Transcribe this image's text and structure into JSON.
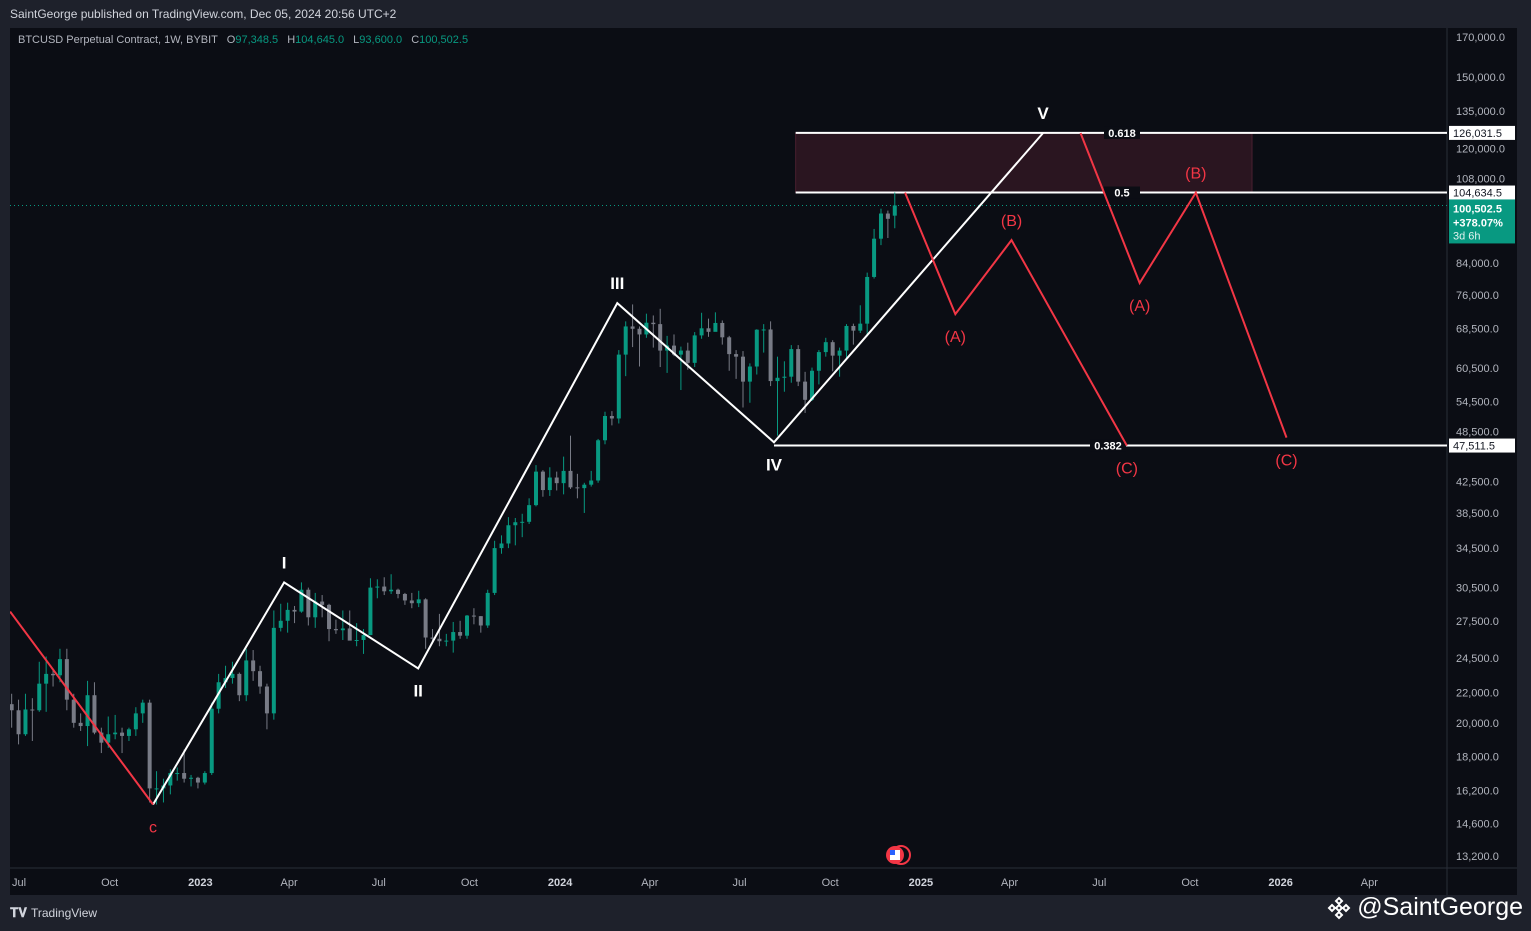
{
  "header": {
    "published": "SaintGeorge published on TradingView.com, Dec 05, 2024 20:56 UTC+2"
  },
  "legend": {
    "symbol": "BTCUSD Perpetual Contract, 1W, BYBIT",
    "o_label": "O",
    "o": "97,348.5",
    "h_label": "H",
    "h": "104,645.0",
    "l_label": "L",
    "l": "93,600.0",
    "c_label": "C",
    "c": "100,502.5"
  },
  "footer": {
    "logo": "TradingView",
    "author": "@SaintGeorge"
  },
  "colors": {
    "up": "#089981",
    "down": "#787b86",
    "wave": "#ffffff",
    "correction": "#f23645",
    "zone": "#2a1520",
    "background": "#0b0d14"
  },
  "chart_data": {
    "type": "candlestick",
    "y_scale": "log",
    "ylim": [
      13200,
      170000
    ],
    "xlim": [
      "2022-06-21",
      "2026-06-20"
    ],
    "grid": false,
    "y_ticks": [
      170000,
      150000,
      135000,
      120000,
      108000,
      84000,
      76000,
      68500,
      60500,
      54500,
      48500,
      42500,
      38500,
      34500,
      30500,
      27500,
      24500,
      22000,
      20000,
      18000,
      16200,
      14600,
      13200
    ],
    "y_tick_labels": [
      "170,000.0",
      "150,000.0",
      "135,000.0",
      "120,000.0",
      "108,000.0",
      "84,000.0",
      "76,000.0",
      "68,500.0",
      "60,500.0",
      "54,500.0",
      "48,500.0",
      "42,500.0",
      "38,500.0",
      "34,500.0",
      "30,500.0",
      "27,500.0",
      "24,500.0",
      "22,000.0",
      "20,000.0",
      "18,000.0",
      "16,200.0",
      "14,600.0",
      "13,200.0"
    ],
    "x_ticks": [
      {
        "date": "2022-07-01",
        "label": "Jul"
      },
      {
        "date": "2022-10-01",
        "label": "Oct"
      },
      {
        "date": "2023-01-01",
        "label": "2023"
      },
      {
        "date": "2023-04-01",
        "label": "Apr"
      },
      {
        "date": "2023-07-01",
        "label": "Jul"
      },
      {
        "date": "2023-10-01",
        "label": "Oct"
      },
      {
        "date": "2024-01-01",
        "label": "2024"
      },
      {
        "date": "2024-04-01",
        "label": "Apr"
      },
      {
        "date": "2024-07-01",
        "label": "Jul"
      },
      {
        "date": "2024-10-01",
        "label": "Oct"
      },
      {
        "date": "2025-01-01",
        "label": "2025"
      },
      {
        "date": "2025-04-01",
        "label": "Apr"
      },
      {
        "date": "2025-07-01",
        "label": "Jul"
      },
      {
        "date": "2025-10-01",
        "label": "Oct"
      },
      {
        "date": "2026-01-01",
        "label": "2026"
      },
      {
        "date": "2026-04-01",
        "label": "Apr"
      }
    ],
    "price_labels": [
      {
        "price": 126031.5,
        "label": "126,031.5"
      },
      {
        "price": 104634.5,
        "label": "104,634.5"
      },
      {
        "price": 47511.5,
        "label": "47,511.5"
      }
    ],
    "last_price": {
      "price": 100502.5,
      "label": "100,502.5",
      "change": "+378.07%",
      "countdown": "3d 6h"
    },
    "fib_levels": [
      {
        "level": "0.618",
        "price": 126031.5,
        "from": "2024-08-27"
      },
      {
        "level": "0.5",
        "price": 104634.5,
        "from": "2024-08-27"
      },
      {
        "level": "0.382",
        "price": 47511.5,
        "from": "2024-08-05"
      }
    ],
    "zone": {
      "from": "2024-08-27",
      "to": "2025-12-03",
      "low": 104634.5,
      "high": 126031.5
    },
    "waves": [
      {
        "name": "impulse",
        "color": "#ffffff",
        "points": [
          {
            "date": "2022-11-14",
            "price": 15500,
            "label": "",
            "pos": "below"
          },
          {
            "date": "2023-03-27",
            "price": 31000,
            "label": "I",
            "pos": "above"
          },
          {
            "date": "2023-08-10",
            "price": 23700,
            "label": "II",
            "pos": "below"
          },
          {
            "date": "2024-02-28",
            "price": 74100,
            "label": "III",
            "pos": "above"
          },
          {
            "date": "2024-08-05",
            "price": 48000,
            "label": "IV",
            "pos": "below"
          },
          {
            "date": "2025-05-05",
            "price": 126000,
            "label": "V",
            "pos": "above"
          }
        ]
      },
      {
        "name": "prior",
        "color": "#f23645",
        "points": [
          {
            "date": "2022-06-22",
            "price": 28300,
            "label": "",
            "pos": "above"
          },
          {
            "date": "2022-11-14",
            "price": 15500,
            "label": "c",
            "pos": "below"
          }
        ]
      },
      {
        "name": "correction-1",
        "color": "#f23645",
        "points": [
          {
            "date": "2024-12-16",
            "price": 104600,
            "label": "",
            "pos": "above"
          },
          {
            "date": "2025-02-05",
            "price": 71600,
            "label": "(A)",
            "pos": "below"
          },
          {
            "date": "2025-04-03",
            "price": 90200,
            "label": "(B)",
            "pos": "above"
          },
          {
            "date": "2025-07-29",
            "price": 47500,
            "label": "(C)",
            "pos": "below"
          }
        ]
      },
      {
        "name": "correction-2",
        "color": "#f23645",
        "points": [
          {
            "date": "2025-06-12",
            "price": 126000,
            "label": "",
            "pos": "above"
          },
          {
            "date": "2025-08-11",
            "price": 78900,
            "label": "(A)",
            "pos": "below"
          },
          {
            "date": "2025-10-07",
            "price": 104600,
            "label": "(B)",
            "pos": "above"
          },
          {
            "date": "2026-01-07",
            "price": 48700,
            "label": "(C)",
            "pos": "below"
          }
        ]
      }
    ],
    "candles": [
      [
        "2022-06-20",
        21200,
        21900,
        19700,
        20800
      ],
      [
        "2022-06-27",
        20800,
        21500,
        18700,
        19300
      ],
      [
        "2022-07-04",
        19300,
        21900,
        19200,
        20850
      ],
      [
        "2022-07-11",
        20850,
        21600,
        18900,
        20800
      ],
      [
        "2022-07-18",
        20800,
        24200,
        20700,
        22600
      ],
      [
        "2022-07-25",
        22600,
        24600,
        20700,
        23300
      ],
      [
        "2022-08-01",
        23300,
        23600,
        22400,
        23200
      ],
      [
        "2022-08-08",
        23200,
        25200,
        22700,
        24400
      ],
      [
        "2022-08-15",
        24400,
        25200,
        20800,
        21500
      ],
      [
        "2022-08-22",
        21500,
        21900,
        19700,
        20000
      ],
      [
        "2022-08-29",
        20000,
        20600,
        19500,
        19800
      ],
      [
        "2022-09-05",
        19800,
        22800,
        18600,
        21800
      ],
      [
        "2022-09-12",
        21800,
        22700,
        19300,
        19400
      ],
      [
        "2022-09-19",
        19400,
        19700,
        18200,
        18800
      ],
      [
        "2022-09-26",
        18800,
        20400,
        18500,
        19300
      ],
      [
        "2022-10-03",
        19300,
        20500,
        19000,
        19400
      ],
      [
        "2022-10-10",
        19400,
        19700,
        18200,
        19200
      ],
      [
        "2022-10-17",
        19200,
        19700,
        18900,
        19600
      ],
      [
        "2022-10-24",
        19600,
        21000,
        19200,
        20600
      ],
      [
        "2022-10-31",
        20600,
        21500,
        20000,
        21300
      ],
      [
        "2022-11-07",
        21300,
        21500,
        15600,
        16300
      ],
      [
        "2022-11-14",
        16300,
        17200,
        15500,
        16300
      ],
      [
        "2022-11-21",
        16300,
        16800,
        15600,
        16450
      ],
      [
        "2022-11-28",
        16450,
        17300,
        16000,
        17100
      ],
      [
        "2022-12-05",
        17100,
        17400,
        16700,
        17100
      ],
      [
        "2022-12-12",
        17100,
        18400,
        16600,
        16800
      ],
      [
        "2022-12-19",
        16800,
        17000,
        16400,
        16850
      ],
      [
        "2022-12-26",
        16850,
        16900,
        16300,
        16600
      ],
      [
        "2023-01-02",
        16600,
        17200,
        16500,
        17100
      ],
      [
        "2023-01-09",
        17100,
        21300,
        17000,
        20900
      ],
      [
        "2023-01-16",
        20900,
        23300,
        20600,
        22700
      ],
      [
        "2023-01-23",
        22700,
        23900,
        22300,
        23000
      ],
      [
        "2023-01-30",
        23000,
        24200,
        22600,
        23300
      ],
      [
        "2023-02-06",
        23300,
        23400,
        21400,
        21800
      ],
      [
        "2023-02-13",
        21800,
        25200,
        21400,
        24300
      ],
      [
        "2023-02-20",
        24300,
        25100,
        22800,
        23500
      ],
      [
        "2023-02-27",
        23500,
        23900,
        21900,
        22400
      ],
      [
        "2023-03-06",
        22400,
        22600,
        19600,
        20600
      ],
      [
        "2023-03-13",
        20600,
        28400,
        20200,
        26900
      ],
      [
        "2023-03-20",
        26900,
        29000,
        26600,
        27500
      ],
      [
        "2023-03-27",
        27500,
        29100,
        26500,
        28450
      ],
      [
        "2023-04-03",
        28450,
        28800,
        27300,
        28300
      ],
      [
        "2023-04-10",
        28300,
        31000,
        28200,
        30300
      ],
      [
        "2023-04-17",
        30300,
        30500,
        27100,
        27800
      ],
      [
        "2023-04-24",
        27800,
        30000,
        26900,
        29200
      ],
      [
        "2023-05-01",
        29200,
        29800,
        27800,
        28900
      ],
      [
        "2023-05-08",
        28900,
        29000,
        25800,
        26800
      ],
      [
        "2023-05-15",
        26800,
        27600,
        26400,
        26700
      ],
      [
        "2023-05-22",
        26700,
        28400,
        25900,
        26850
      ],
      [
        "2023-05-29",
        26850,
        28400,
        26600,
        25850
      ],
      [
        "2023-06-05",
        25850,
        27300,
        25400,
        25900
      ],
      [
        "2023-06-12",
        25900,
        26800,
        24800,
        26300
      ],
      [
        "2023-06-19",
        26300,
        31400,
        26300,
        30500
      ],
      [
        "2023-06-26",
        30500,
        31300,
        29500,
        30600
      ],
      [
        "2023-07-03",
        30600,
        31500,
        29800,
        30150
      ],
      [
        "2023-07-10",
        30150,
        31800,
        29900,
        30300
      ],
      [
        "2023-07-17",
        30300,
        30400,
        29500,
        29900
      ],
      [
        "2023-07-24",
        29900,
        30000,
        28900,
        29300
      ],
      [
        "2023-07-31",
        29300,
        30000,
        28600,
        29050
      ],
      [
        "2023-08-07",
        29050,
        30200,
        28700,
        29400
      ],
      [
        "2023-08-14",
        29400,
        29500,
        25200,
        26100
      ],
      [
        "2023-08-21",
        26100,
        26800,
        25800,
        26000
      ],
      [
        "2023-08-28",
        26000,
        28100,
        25400,
        25800
      ],
      [
        "2023-09-04",
        25800,
        26400,
        25400,
        25850
      ],
      [
        "2023-09-11",
        25850,
        27400,
        24900,
        26550
      ],
      [
        "2023-09-18",
        26550,
        27500,
        26000,
        26250
      ],
      [
        "2023-09-25",
        26250,
        28000,
        26000,
        27950
      ],
      [
        "2023-10-02",
        27950,
        28600,
        27200,
        27900
      ],
      [
        "2023-10-09",
        27900,
        27900,
        26500,
        27100
      ],
      [
        "2023-10-16",
        27100,
        30300,
        26900,
        30000
      ],
      [
        "2023-10-23",
        30000,
        35300,
        29800,
        34500
      ],
      [
        "2023-10-30",
        34500,
        35900,
        33900,
        35000
      ],
      [
        "2023-11-06",
        35000,
        38000,
        34500,
        37050
      ],
      [
        "2023-11-13",
        37050,
        37900,
        34800,
        37400
      ],
      [
        "2023-11-20",
        37400,
        38400,
        35700,
        37450
      ],
      [
        "2023-11-27",
        37450,
        40300,
        37200,
        39450
      ],
      [
        "2023-12-04",
        39450,
        44700,
        39300,
        43800
      ],
      [
        "2023-12-11",
        43800,
        44000,
        40500,
        41350
      ],
      [
        "2023-12-18",
        41350,
        44400,
        40600,
        43000
      ],
      [
        "2023-12-25",
        43000,
        43800,
        41300,
        42250
      ],
      [
        "2024-01-01",
        42250,
        45900,
        40800,
        43900
      ],
      [
        "2024-01-08",
        43900,
        49000,
        41500,
        41700
      ],
      [
        "2024-01-15",
        41700,
        43500,
        40300,
        41600
      ],
      [
        "2024-01-22",
        41600,
        42300,
        38500,
        42050
      ],
      [
        "2024-01-29",
        42050,
        43900,
        41800,
        42600
      ],
      [
        "2024-02-05",
        42600,
        48500,
        42300,
        48300
      ],
      [
        "2024-02-12",
        48300,
        52800,
        47700,
        52100
      ],
      [
        "2024-02-19",
        52100,
        52900,
        50600,
        51700
      ],
      [
        "2024-02-26",
        51700,
        64000,
        50900,
        63100
      ],
      [
        "2024-03-04",
        63100,
        70000,
        59000,
        68900
      ],
      [
        "2024-03-11",
        68900,
        73800,
        64600,
        68400
      ],
      [
        "2024-03-18",
        68400,
        68900,
        60800,
        67200
      ],
      [
        "2024-03-25",
        67200,
        71700,
        66500,
        69700
      ],
      [
        "2024-04-01",
        69700,
        71300,
        64500,
        69400
      ],
      [
        "2024-04-08",
        69400,
        72800,
        60700,
        63900
      ],
      [
        "2024-04-15",
        63900,
        66900,
        59600,
        64900
      ],
      [
        "2024-04-22",
        64900,
        67200,
        62800,
        63100
      ],
      [
        "2024-04-29",
        63100,
        64700,
        56500,
        63900
      ],
      [
        "2024-05-06",
        63900,
        65500,
        60200,
        61500
      ],
      [
        "2024-05-13",
        61500,
        67700,
        60700,
        67000
      ],
      [
        "2024-05-20",
        67000,
        71900,
        66300,
        68500
      ],
      [
        "2024-05-27",
        68500,
        70600,
        66700,
        67750
      ],
      [
        "2024-06-03",
        67750,
        72000,
        68500,
        69650
      ],
      [
        "2024-06-10",
        69650,
        70200,
        65100,
        66600
      ],
      [
        "2024-06-17",
        66600,
        66900,
        60000,
        63200
      ],
      [
        "2024-06-24",
        63200,
        64000,
        58500,
        62700
      ],
      [
        "2024-07-01",
        62700,
        63800,
        53500,
        58000
      ],
      [
        "2024-07-08",
        58000,
        61400,
        54300,
        60800
      ],
      [
        "2024-07-15",
        60800,
        68300,
        59300,
        68200
      ],
      [
        "2024-07-22",
        68200,
        69400,
        63500,
        68250
      ],
      [
        "2024-07-29",
        68250,
        70000,
        57200,
        58100
      ],
      [
        "2024-08-05",
        58100,
        62700,
        49000,
        58700
      ],
      [
        "2024-08-12",
        58700,
        61800,
        56200,
        58900
      ],
      [
        "2024-08-19",
        58900,
        65000,
        57800,
        64200
      ],
      [
        "2024-08-26",
        64200,
        65000,
        57200,
        58000
      ],
      [
        "2024-09-02",
        58000,
        59800,
        52600,
        54800
      ],
      [
        "2024-09-09",
        54800,
        60600,
        54600,
        60000
      ],
      [
        "2024-09-16",
        60000,
        64000,
        57500,
        63600
      ],
      [
        "2024-09-23",
        63600,
        66500,
        62700,
        65600
      ],
      [
        "2024-09-30",
        65600,
        66000,
        59900,
        62900
      ],
      [
        "2024-10-07",
        62900,
        64500,
        58900,
        63900
      ],
      [
        "2024-10-14",
        63900,
        69400,
        62000,
        69000
      ],
      [
        "2024-10-21",
        69000,
        69500,
        65100,
        68000
      ],
      [
        "2024-10-28",
        68000,
        73600,
        67500,
        69500
      ],
      [
        "2024-11-04",
        69500,
        81500,
        66800,
        80400
      ],
      [
        "2024-11-11",
        80400,
        93400,
        80000,
        90600
      ],
      [
        "2024-11-18",
        90600,
        99500,
        88800,
        98000
      ],
      [
        "2024-11-25",
        98000,
        98900,
        90800,
        96400
      ],
      [
        "2024-12-02",
        97348.5,
        104645.0,
        93600.0,
        100502.5
      ]
    ]
  }
}
